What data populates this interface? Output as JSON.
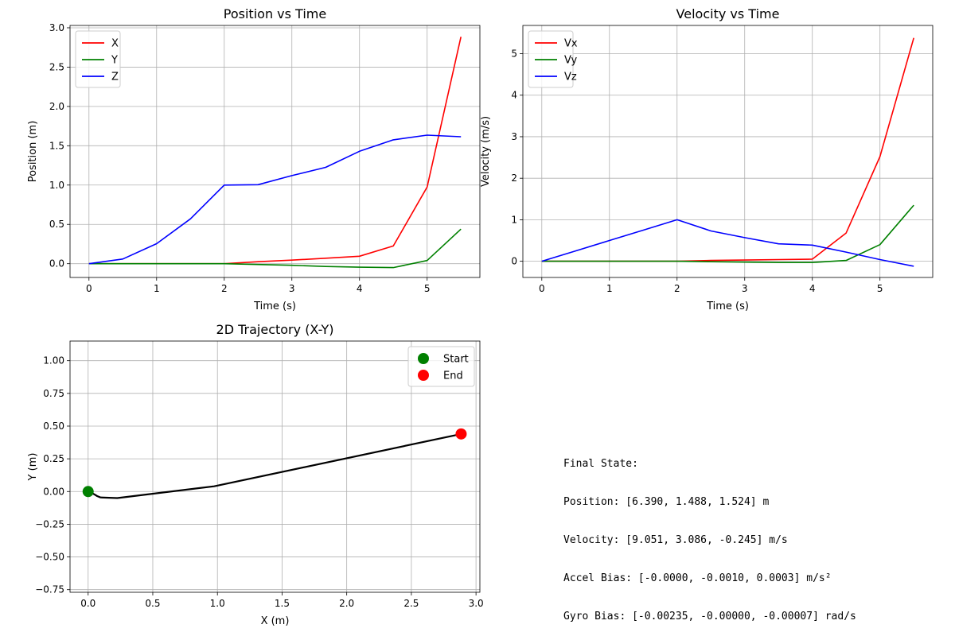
{
  "chart_data": [
    {
      "type": "line",
      "title": "Position vs Time",
      "xlabel": "Time (s)",
      "ylabel": "Position (m)",
      "xlim": [
        -0.28,
        5.78
      ],
      "ylim": [
        -0.175,
        3.03
      ],
      "xticks": [
        0,
        1,
        2,
        3,
        4,
        5
      ],
      "yticks": [
        0.0,
        0.5,
        1.0,
        1.5,
        2.0,
        2.5,
        3.0
      ],
      "ytick_labels": [
        "0.0",
        "0.5",
        "1.0",
        "1.5",
        "2.0",
        "2.5",
        "3.0"
      ],
      "grid": true,
      "legend_placement": "upper-left",
      "x": [
        0,
        0.5,
        1,
        1.5,
        2,
        2.5,
        3,
        3.5,
        4,
        4.5,
        5,
        5.5
      ],
      "series": [
        {
          "name": "X",
          "color": "#ff0000",
          "values": [
            0,
            0,
            0,
            0,
            0,
            0.025,
            0.045,
            0.07,
            0.095,
            0.225,
            0.975,
            2.885
          ]
        },
        {
          "name": "Y",
          "color": "#008000",
          "values": [
            0,
            0,
            0,
            0,
            0,
            -0.01,
            -0.02,
            -0.035,
            -0.045,
            -0.05,
            0.04,
            0.44
          ]
        },
        {
          "name": "Z",
          "color": "#0000ff",
          "values": [
            0,
            0.06,
            0.255,
            0.57,
            1.0,
            1.005,
            1.12,
            1.225,
            1.43,
            1.575,
            1.635,
            1.615
          ]
        }
      ]
    },
    {
      "type": "line",
      "title": "Velocity vs Time",
      "xlabel": "Time (s)",
      "ylabel": "Velocity (m/s)",
      "xlim": [
        -0.28,
        5.78
      ],
      "ylim": [
        -0.39,
        5.68
      ],
      "xticks": [
        0,
        1,
        2,
        3,
        4,
        5
      ],
      "yticks": [
        0,
        1,
        2,
        3,
        4,
        5
      ],
      "ytick_labels": [
        "0",
        "1",
        "2",
        "3",
        "4",
        "5"
      ],
      "grid": true,
      "legend_placement": "upper-left",
      "x": [
        0,
        0.5,
        1,
        1.5,
        2,
        2.5,
        3,
        3.5,
        4,
        4.5,
        5,
        5.5
      ],
      "series": [
        {
          "name": "Vx",
          "color": "#ff0000",
          "values": [
            0,
            0,
            0,
            0,
            0,
            0.02,
            0.03,
            0.04,
            0.05,
            0.68,
            2.52,
            5.38
          ]
        },
        {
          "name": "Vy",
          "color": "#008000",
          "values": [
            0,
            0,
            0,
            0,
            0,
            -0.01,
            -0.02,
            -0.03,
            -0.03,
            0.02,
            0.4,
            1.35
          ]
        },
        {
          "name": "Vz",
          "color": "#0000ff",
          "values": [
            0,
            0.25,
            0.5,
            0.75,
            1.0,
            0.73,
            0.57,
            0.42,
            0.39,
            0.22,
            0.04,
            -0.12
          ]
        }
      ]
    },
    {
      "type": "line",
      "title": "2D Trajectory (X-Y)",
      "xlabel": "X (m)",
      "ylabel": "Y (m)",
      "xlim": [
        -0.14,
        3.03
      ],
      "ylim": [
        -0.77,
        1.15
      ],
      "xticks": [
        0,
        0.5,
        1,
        1.5,
        2,
        2.5,
        3
      ],
      "xtick_labels": [
        "0.0",
        "0.5",
        "1.0",
        "1.5",
        "2.0",
        "2.5",
        "3.0"
      ],
      "yticks": [
        -0.75,
        -0.5,
        -0.25,
        0,
        0.25,
        0.5,
        0.75,
        1.0
      ],
      "ytick_labels": [
        "−0.75",
        "−0.50",
        "−0.25",
        "0.00",
        "0.25",
        "0.50",
        "0.75",
        "1.00"
      ],
      "grid": true,
      "legend_placement": "upper-right",
      "series": [
        {
          "color": "#000000",
          "x": [
            0,
            0.025,
            0.045,
            0.07,
            0.095,
            0.225,
            0.975,
            2.885
          ],
          "y": [
            0,
            -0.01,
            -0.02,
            -0.035,
            -0.045,
            -0.05,
            0.04,
            0.44
          ]
        }
      ],
      "markers": [
        {
          "name": "Start",
          "color": "#008000",
          "x": 0,
          "y": 0
        },
        {
          "name": "End",
          "color": "#ff0000",
          "x": 2.885,
          "y": 0.44
        }
      ]
    }
  ],
  "final_state": {
    "lines": [
      "Final State:",
      "Position: [6.390, 1.488, 1.524] m",
      "Velocity: [9.051, 3.086, -0.245] m/s",
      "Accel Bias: [-0.0000, -0.0010, 0.0003] m/s²",
      "Gyro Bias: [-0.00235, -0.00000, -0.00007] rad/s"
    ]
  }
}
